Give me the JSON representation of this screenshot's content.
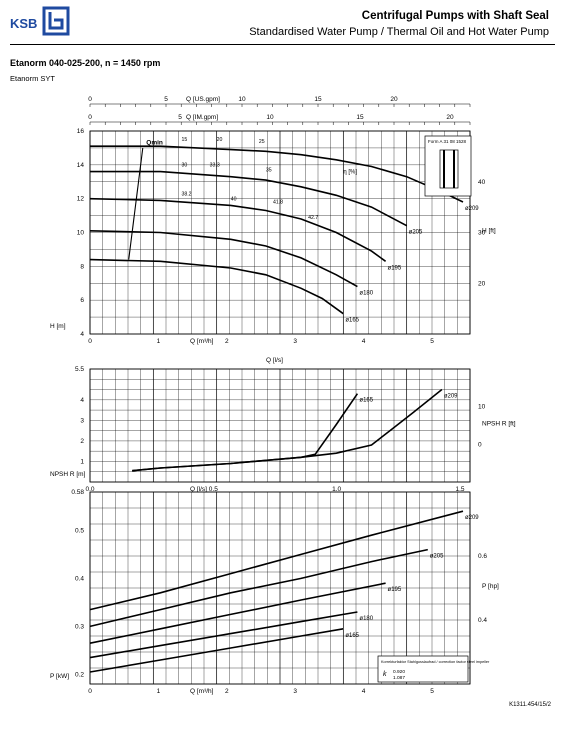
{
  "header": {
    "title": "Centrifugal Pumps with Shaft Seal",
    "subtitle": "Standardised Water Pump / Thermal Oil and Hot Water Pump",
    "logo_text": "KSB",
    "model": "Etanorm 040-025-200, n = 1450 rpm",
    "variant": "Etanorm SYT",
    "footer_code": "K1311.454/15/2"
  },
  "colors": {
    "logo": "#1f4aa0",
    "curve": "#000000",
    "grid": "#000000"
  },
  "chart_data": [
    {
      "type": "line",
      "title": "",
      "xlabel": "Q [m³/h]",
      "ylabel": "H [m]",
      "xlim": [
        0,
        5.4
      ],
      "ylim": [
        4,
        16
      ],
      "x_ticks": [
        "0",
        "1",
        "2",
        "3",
        "4",
        "5"
      ],
      "y_ticks": [
        "4",
        "6",
        "8",
        "10",
        "12",
        "14",
        "16"
      ],
      "secondary_x_top": [
        {
          "label": "Q [US.gpm]",
          "ticks": [
            "0",
            "5",
            "10",
            "15",
            "20"
          ]
        },
        {
          "label": "Q [IM.gpm]",
          "ticks": [
            "0",
            "5",
            "10",
            "15",
            "20"
          ]
        }
      ],
      "secondary_y_right": {
        "label": "H [ft]",
        "ticks": [
          "20",
          "30",
          "40"
        ]
      },
      "series": [
        {
          "name": "ø209",
          "x": [
            0,
            1,
            2,
            2.5,
            3,
            3.5,
            4,
            4.5,
            5,
            5.3
          ],
          "y": [
            15.1,
            15.1,
            14.9,
            14.8,
            14.6,
            14.3,
            13.9,
            13.3,
            12.4,
            11.8
          ]
        },
        {
          "name": "ø205",
          "x": [
            0,
            1,
            2,
            2.5,
            3,
            3.5,
            4,
            4.5
          ],
          "y": [
            13.6,
            13.6,
            13.3,
            13.1,
            12.7,
            12.2,
            11.5,
            10.4
          ]
        },
        {
          "name": "ø195",
          "x": [
            0,
            1,
            2,
            2.5,
            3,
            3.5,
            4,
            4.2
          ],
          "y": [
            12.0,
            11.9,
            11.6,
            11.3,
            10.8,
            10.0,
            8.9,
            8.3
          ]
        },
        {
          "name": "ø180",
          "x": [
            0,
            1,
            2,
            2.5,
            3,
            3.5,
            3.8
          ],
          "y": [
            10.1,
            10.0,
            9.6,
            9.2,
            8.5,
            7.5,
            6.8
          ]
        },
        {
          "name": "ø165",
          "x": [
            0,
            1,
            2,
            2.5,
            3,
            3.3,
            3.6
          ],
          "y": [
            8.4,
            8.3,
            7.9,
            7.5,
            6.7,
            6.1,
            5.2
          ]
        }
      ],
      "qmin_label": "Qmin",
      "qmin_line": {
        "x": [
          0.4,
          0.5,
          0.7,
          0.8,
          0.7
        ],
        "y": [
          15.1,
          13.6,
          12.0,
          10.1,
          8.4
        ]
      },
      "efficiency_label": "η [%]",
      "efficiency_values": [
        "15",
        "20",
        "25",
        "30",
        "33.3",
        "35",
        "38.2",
        "40",
        "41.8",
        "42.7"
      ],
      "inset_label": "Form A 31 08 1528"
    },
    {
      "type": "line",
      "title": "",
      "xlabel": "Q [l/s]",
      "ylabel": "NPSH R [m]",
      "xlim": [
        0,
        5.4
      ],
      "ylim": [
        0,
        5.5
      ],
      "x_ticks": [
        "0.0",
        "0.5",
        "1.0",
        "1.5"
      ],
      "y_ticks": [
        "1",
        "2",
        "3",
        "4",
        "5.5"
      ],
      "secondary_y_right": {
        "label": "NPSH R [ft]",
        "ticks": [
          "0",
          "10"
        ]
      },
      "series": [
        {
          "name": "ø209",
          "x": [
            0.6,
            1,
            2,
            3,
            3.5,
            4,
            4.3,
            4.6,
            5
          ],
          "y": [
            0.55,
            0.68,
            0.9,
            1.2,
            1.4,
            1.8,
            2.6,
            3.4,
            4.5
          ]
        },
        {
          "name": "ø165",
          "x": [
            0.6,
            1,
            2,
            3,
            3.2,
            3.5,
            3.8
          ],
          "y": [
            0.55,
            0.68,
            0.9,
            1.2,
            1.35,
            2.8,
            4.3
          ]
        }
      ]
    },
    {
      "type": "line",
      "title": "",
      "xlabel": "Q [m³/h]",
      "ylabel": "P [kW]",
      "xlim": [
        0,
        5.4
      ],
      "ylim": [
        0.18,
        0.58
      ],
      "x_ticks": [
        "0",
        "1",
        "2",
        "3",
        "4",
        "5"
      ],
      "y_ticks": [
        "0.2",
        "0.3",
        "0.4",
        "0.5",
        "0.58"
      ],
      "secondary_y_right": {
        "label": "P [hp]",
        "ticks": [
          "0.4",
          "0.6"
        ]
      },
      "series": [
        {
          "name": "ø209",
          "x": [
            0,
            1,
            2,
            3,
            4,
            5.3
          ],
          "y": [
            0.335,
            0.37,
            0.41,
            0.45,
            0.49,
            0.54
          ]
        },
        {
          "name": "ø205",
          "x": [
            0,
            1,
            2,
            3,
            4,
            4.8
          ],
          "y": [
            0.3,
            0.335,
            0.37,
            0.4,
            0.435,
            0.46
          ]
        },
        {
          "name": "ø195",
          "x": [
            0,
            1,
            2,
            3,
            4.2
          ],
          "y": [
            0.265,
            0.295,
            0.325,
            0.355,
            0.39
          ]
        },
        {
          "name": "ø180",
          "x": [
            0,
            1,
            2,
            3,
            3.8
          ],
          "y": [
            0.235,
            0.26,
            0.285,
            0.31,
            0.33
          ]
        },
        {
          "name": "ø165",
          "x": [
            0,
            1,
            2,
            3,
            3.6
          ],
          "y": [
            0.205,
            0.23,
            0.255,
            0.28,
            0.295
          ]
        }
      ],
      "note": {
        "title": "Korrekturfaktor Stahlgusslaufrad / correction factor steel impeller",
        "k_symbol": "k",
        "k_values": [
          "0.920",
          "1.087"
        ]
      }
    }
  ]
}
